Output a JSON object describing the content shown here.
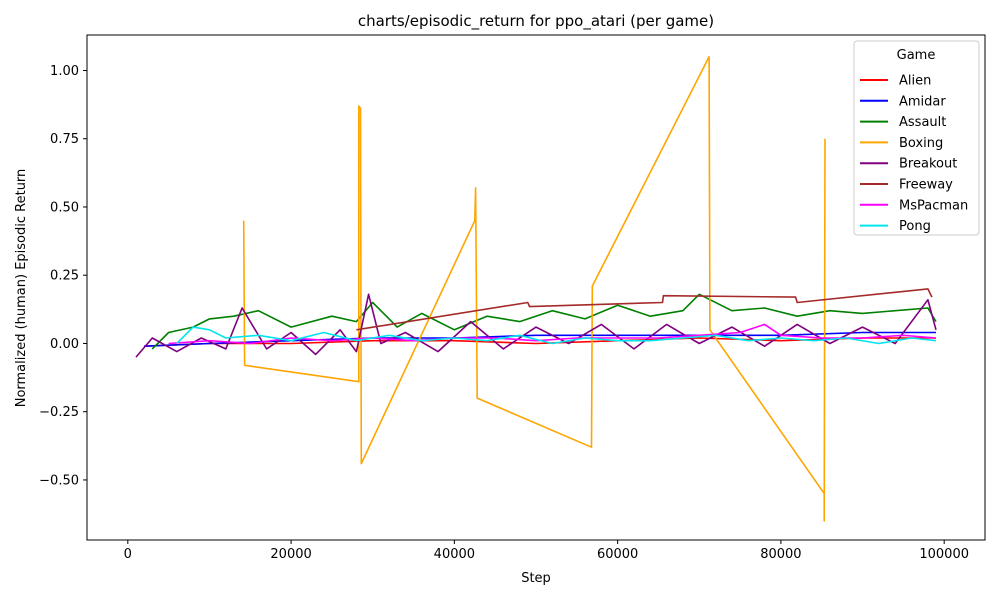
{
  "chart_data": {
    "type": "line",
    "title": "charts/episodic_return for ppo_atari (per game)",
    "xlabel": "Step",
    "ylabel": "Normalized (human) Episodic Return",
    "xlim": [
      -5000,
      105000
    ],
    "ylim": [
      -0.72,
      1.13
    ],
    "xticks": [
      0,
      20000,
      40000,
      60000,
      80000,
      100000
    ],
    "xtick_labels": [
      "0",
      "20000",
      "40000",
      "60000",
      "80000",
      "100000"
    ],
    "yticks": [
      -0.5,
      -0.25,
      0.0,
      0.25,
      0.5,
      0.75,
      1.0
    ],
    "ytick_labels": [
      "−0.50",
      "−0.25",
      "0.00",
      "0.25",
      "0.50",
      "0.75",
      "1.00"
    ],
    "grid": false,
    "legend": {
      "title": "Game",
      "placement": "top-right"
    },
    "series": [
      {
        "name": "Alien",
        "color": "#ff0000",
        "x": [
          2000,
          10000,
          20000,
          30000,
          40000,
          50000,
          60000,
          70000,
          80000,
          90000,
          99000
        ],
        "y": [
          -0.01,
          0.0,
          0.0,
          0.01,
          0.01,
          0.0,
          0.01,
          0.02,
          0.01,
          0.02,
          0.02
        ]
      },
      {
        "name": "Amidar",
        "color": "#0000ff",
        "x": [
          2000,
          10000,
          20000,
          30000,
          40000,
          50000,
          60000,
          70000,
          80000,
          90000,
          99000
        ],
        "y": [
          -0.01,
          0.0,
          0.01,
          0.02,
          0.02,
          0.03,
          0.03,
          0.03,
          0.03,
          0.04,
          0.04
        ]
      },
      {
        "name": "Assault",
        "color": "#008000",
        "x": [
          3000,
          5000,
          8000,
          10000,
          13000,
          16000,
          20000,
          25000,
          28000,
          30000,
          33000,
          36000,
          40000,
          44000,
          48000,
          52000,
          56000,
          60000,
          64000,
          68000,
          70000,
          74000,
          78000,
          82000,
          86000,
          90000,
          94000,
          98000,
          99000
        ],
        "y": [
          -0.02,
          0.04,
          0.06,
          0.09,
          0.1,
          0.12,
          0.06,
          0.1,
          0.08,
          0.15,
          0.06,
          0.11,
          0.05,
          0.1,
          0.08,
          0.12,
          0.09,
          0.14,
          0.1,
          0.12,
          0.18,
          0.12,
          0.13,
          0.1,
          0.12,
          0.11,
          0.12,
          0.13,
          0.08
        ]
      },
      {
        "name": "Boxing",
        "color": "#ffa500",
        "x": [
          14200,
          14200,
          14300,
          28300,
          28300,
          28500,
          28600,
          42500,
          42600,
          42800,
          56800,
          56900,
          71200,
          71300,
          85300,
          85300,
          85400,
          85400
        ],
        "y": [
          0.45,
          0.45,
          -0.08,
          -0.14,
          0.87,
          0.86,
          -0.44,
          0.45,
          0.57,
          -0.2,
          -0.38,
          0.21,
          1.05,
          0.05,
          -0.55,
          -0.65,
          0.75,
          0.75
        ]
      },
      {
        "name": "Breakout",
        "color": "#800080",
        "x": [
          1000,
          3000,
          6000,
          9000,
          12000,
          14000,
          17000,
          20000,
          23000,
          26000,
          28000,
          29500,
          31000,
          34000,
          38000,
          42000,
          46000,
          50000,
          54000,
          58000,
          62000,
          66000,
          70000,
          74000,
          78000,
          82000,
          86000,
          90000,
          94000,
          98000,
          99000
        ],
        "y": [
          -0.05,
          0.02,
          -0.03,
          0.02,
          -0.02,
          0.13,
          -0.02,
          0.04,
          -0.04,
          0.05,
          -0.03,
          0.18,
          0.0,
          0.04,
          -0.03,
          0.08,
          -0.02,
          0.06,
          0.0,
          0.07,
          -0.02,
          0.07,
          0.0,
          0.06,
          -0.01,
          0.07,
          0.0,
          0.06,
          0.0,
          0.16,
          0.05
        ]
      },
      {
        "name": "Freeway",
        "color": "#a52a2a",
        "x": [
          28000,
          49000,
          49200,
          65500,
          65600,
          81800,
          82000,
          98000,
          98500
        ],
        "y": [
          0.05,
          0.15,
          0.135,
          0.15,
          0.175,
          0.17,
          0.15,
          0.2,
          0.17
        ]
      },
      {
        "name": "MsPacman",
        "color": "#ff00ff",
        "x": [
          5000,
          10000,
          15000,
          20000,
          25000,
          30000,
          35000,
          40000,
          45000,
          50000,
          55000,
          60000,
          65000,
          70000,
          75000,
          78000,
          80000,
          85000,
          90000,
          95000,
          99000
        ],
        "y": [
          0.0,
          0.01,
          0.0,
          0.02,
          0.01,
          0.02,
          0.01,
          0.02,
          0.02,
          0.01,
          0.02,
          0.02,
          0.02,
          0.03,
          0.04,
          0.07,
          0.03,
          0.02,
          0.02,
          0.03,
          0.02
        ]
      },
      {
        "name": "Pong",
        "color": "#00e5ee",
        "x": [
          6000,
          8000,
          10000,
          12000,
          16000,
          20000,
          24000,
          28000,
          32000,
          36000,
          40000,
          44000,
          48000,
          52000,
          56000,
          60000,
          64000,
          68000,
          72000,
          76000,
          80000,
          84000,
          88000,
          92000,
          96000,
          99000
        ],
        "y": [
          0.0,
          0.06,
          0.05,
          0.02,
          0.03,
          0.01,
          0.04,
          0.01,
          0.03,
          0.01,
          0.02,
          0.01,
          0.03,
          0.0,
          0.02,
          0.01,
          0.01,
          0.02,
          0.03,
          0.01,
          0.02,
          0.01,
          0.02,
          0.0,
          0.02,
          0.01
        ]
      }
    ]
  }
}
